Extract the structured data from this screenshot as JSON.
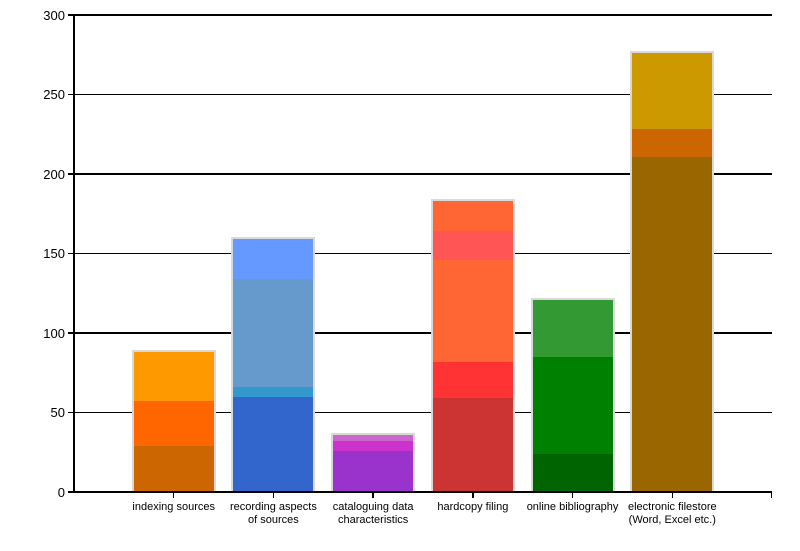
{
  "chart": {
    "background": "#FFFFFF",
    "axis_color": "#000000",
    "grid_color": "#000000",
    "bar_outline_color": "#D9D9D9",
    "text_color": "#000000"
  },
  "chart_data": {
    "type": "bar",
    "subtype": "stacked",
    "title": "",
    "xlabel": "",
    "ylabel": "",
    "ylim": [
      0,
      300
    ],
    "yticks": [
      0,
      50,
      100,
      150,
      200,
      250,
      300
    ],
    "grid": true,
    "legend": "none",
    "categories": [
      "indexing sources",
      "recording aspects\nof sources",
      "cataloguing data\ncharacteristics",
      "hardcopy filing",
      "online bibliography",
      "electronic filestore\n(Word, Excel etc.)"
    ],
    "bars": [
      {
        "category_index": 0,
        "total": 88,
        "segments": [
          {
            "value": 29,
            "color": "#CC6600"
          },
          {
            "value": 28,
            "color": "#FF6600"
          },
          {
            "value": 31,
            "color": "#FF9900"
          }
        ]
      },
      {
        "category_index": 1,
        "total": 159,
        "segments": [
          {
            "value": 60,
            "color": "#3366CC"
          },
          {
            "value": 6,
            "color": "#3399CC"
          },
          {
            "value": 68,
            "color": "#6699CC"
          },
          {
            "value": 25,
            "color": "#6699FF"
          }
        ]
      },
      {
        "category_index": 2,
        "total": 36,
        "segments": [
          {
            "value": 26,
            "color": "#9933CC"
          },
          {
            "value": 6,
            "color": "#CC33CC"
          },
          {
            "value": 4,
            "color": "#CC66CC"
          }
        ]
      },
      {
        "category_index": 3,
        "total": 183,
        "segments": [
          {
            "value": 59,
            "color": "#CC3333"
          },
          {
            "value": 23,
            "color": "#FF3333"
          },
          {
            "value": 64,
            "color": "#FF6633"
          },
          {
            "value": 18,
            "color": "#FF5555"
          },
          {
            "value": 19,
            "color": "#FF6633"
          }
        ]
      },
      {
        "category_index": 4,
        "total": 121,
        "segments": [
          {
            "value": 24,
            "color": "#006400"
          },
          {
            "value": 61,
            "color": "#008000"
          },
          {
            "value": 36,
            "color": "#339933"
          }
        ]
      },
      {
        "category_index": 5,
        "total": 276,
        "segments": [
          {
            "value": 211,
            "color": "#996600"
          },
          {
            "value": 17,
            "color": "#CC6600"
          },
          {
            "value": 48,
            "color": "#CC9900"
          }
        ]
      }
    ]
  }
}
